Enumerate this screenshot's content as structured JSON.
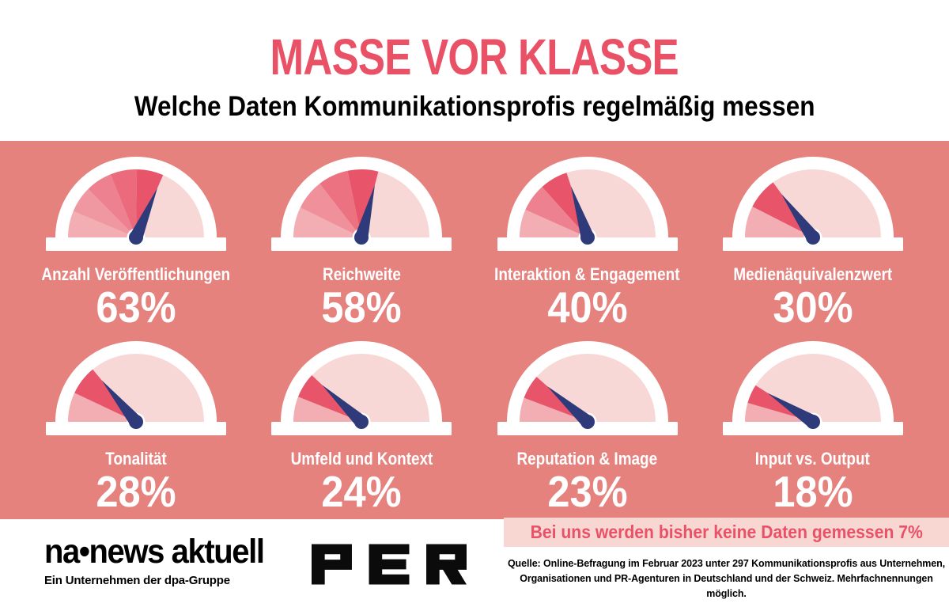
{
  "header": {
    "title": "MASSE VOR KLASSE",
    "subtitle": "Welche Daten Kommunikationsprofis regelmäßig messen"
  },
  "chart_data": {
    "type": "gauge",
    "title": "MASSE VOR KLASSE",
    "subtitle": "Welche Daten Kommunikationsprofis regelmäßig messen",
    "unit": "%",
    "range": [
      0,
      100
    ],
    "layout": "2 rows x 4 half-circle gauges",
    "gauges": [
      {
        "label": "Anzahl Veröffentlichungen",
        "value": 63,
        "pct": "63%"
      },
      {
        "label": "Reichweite",
        "value": 58,
        "pct": "58%"
      },
      {
        "label": "Interaktion & Engagement",
        "value": 40,
        "pct": "40%"
      },
      {
        "label": "Medienäquivalenzwert",
        "value": 30,
        "pct": "30%"
      },
      {
        "label": "Tonalität",
        "value": 28,
        "pct": "28%"
      },
      {
        "label": "Umfeld und Kontext",
        "value": 24,
        "pct": "24%"
      },
      {
        "label": "Reputation & Image",
        "value": 23,
        "pct": "23%"
      },
      {
        "label": "Input vs. Output",
        "value": 18,
        "pct": "18%"
      }
    ],
    "annotation": {
      "label": "Bei uns werden bisher keine Daten gemessen",
      "value": 7
    }
  },
  "footer": {
    "banner_text": "Bei uns werden bisher keine Daten gemessen 7%",
    "source_line1": "Quelle: Online-Befragung im Februar 2023 unter 297 Kommunikationsprofis aus Unternehmen,",
    "source_line2": "Organisationen und PR-Agenturen in Deutschland und der Schweiz. Mehrfachnennungen möglich.",
    "brand_name": "na•news aktuell",
    "brand_tagline": "Ein Unternehmen der dpa-Gruppe",
    "partner_logo": "PER"
  },
  "colors": {
    "panel_background": "#e6827e",
    "title_accent": "#e95167",
    "gauge_track": "#f8d8d6",
    "gauge_fill_light": "#f3aeb3",
    "gauge_fill_red": "#e8546a",
    "gauge_ring": "#ffffff",
    "needle": "#2f3a7a",
    "banner_background": "#f8d7d3",
    "banner_text": "#e95167",
    "text_black": "#000000",
    "text_white": "#ffffff"
  }
}
